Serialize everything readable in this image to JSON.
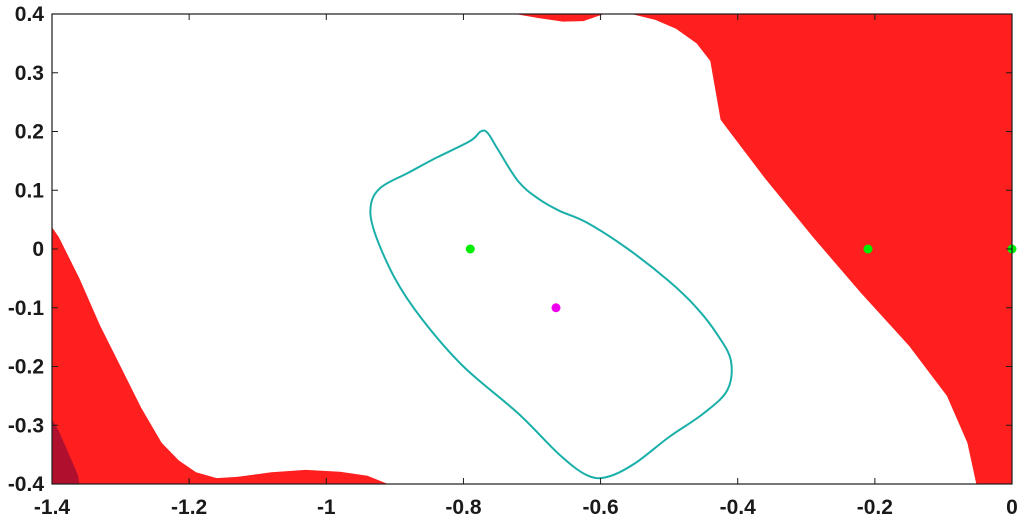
{
  "chart_data": {
    "type": "area",
    "title": "",
    "xlabel": "",
    "ylabel": "",
    "xlim": [
      -1.4,
      0
    ],
    "ylim": [
      -0.4,
      0.4
    ],
    "grid": false,
    "x_ticks": [
      -1.4,
      -1.2,
      -1.0,
      -0.8,
      -0.6,
      -0.4,
      -0.2,
      0
    ],
    "x_tick_labels": [
      "-1.4",
      "-1.2",
      "-1",
      "-0.8",
      "-0.6",
      "-0.4",
      "-0.2",
      "0"
    ],
    "y_ticks": [
      0.4,
      0.3,
      0.2,
      0.1,
      0,
      -0.1,
      -0.2,
      -0.3,
      -0.4
    ],
    "y_tick_labels": [
      "0.4",
      "0.3",
      "0.2",
      "0.1",
      "0",
      "-0.1",
      "-0.2",
      "-0.3",
      "-0.4"
    ],
    "colors": {
      "region": "#ff1f1f",
      "region_dark": "#b0102e",
      "contour": "#1aafa8",
      "green_point": "#00ee00",
      "magenta_point": "#ee00ee",
      "axis": "#1a1a1a"
    },
    "regions": [
      {
        "fill": "region",
        "points": [
          [
            -0.725,
            0.4
          ],
          [
            -0.69,
            0.393
          ],
          [
            -0.655,
            0.387
          ],
          [
            -0.625,
            0.388
          ],
          [
            -0.595,
            0.4
          ],
          [
            -0.555,
            0.4
          ],
          [
            -0.52,
            0.39
          ],
          [
            -0.49,
            0.375
          ],
          [
            -0.46,
            0.35
          ],
          [
            -0.44,
            0.32
          ],
          [
            -0.425,
            0.22
          ],
          [
            -0.36,
            0.12
          ],
          [
            -0.29,
            0.02
          ],
          [
            -0.22,
            -0.075
          ],
          [
            -0.15,
            -0.165
          ],
          [
            -0.095,
            -0.25
          ],
          [
            -0.065,
            -0.33
          ],
          [
            -0.052,
            -0.4
          ],
          [
            0,
            -0.4
          ],
          [
            0,
            0.4
          ]
        ]
      },
      {
        "fill": "region",
        "points": [
          [
            -1.4,
            0.037
          ],
          [
            -1.39,
            0.02
          ],
          [
            -1.36,
            -0.05
          ],
          [
            -1.33,
            -0.13
          ],
          [
            -1.3,
            -0.2
          ],
          [
            -1.27,
            -0.27
          ],
          [
            -1.24,
            -0.33
          ],
          [
            -1.215,
            -0.36
          ],
          [
            -1.19,
            -0.38
          ],
          [
            -1.16,
            -0.39
          ],
          [
            -1.13,
            -0.388
          ],
          [
            -1.08,
            -0.38
          ],
          [
            -1.03,
            -0.376
          ],
          [
            -0.98,
            -0.379
          ],
          [
            -0.94,
            -0.386
          ],
          [
            -0.91,
            -0.4
          ],
          [
            -1.4,
            -0.4
          ]
        ]
      },
      {
        "fill": "region_dark",
        "points": [
          [
            -1.4,
            -0.29
          ],
          [
            -1.39,
            -0.31
          ],
          [
            -1.375,
            -0.35
          ],
          [
            -1.362,
            -0.385
          ],
          [
            -1.36,
            -0.4
          ],
          [
            -1.4,
            -0.4
          ]
        ]
      }
    ],
    "contour": {
      "stroke": "contour",
      "points": [
        [
          -0.79,
          0.184
        ],
        [
          -0.775,
          0.2
        ],
        [
          -0.765,
          0.198
        ],
        [
          -0.75,
          0.17
        ],
        [
          -0.72,
          0.115
        ],
        [
          -0.69,
          0.085
        ],
        [
          -0.66,
          0.065
        ],
        [
          -0.62,
          0.045
        ],
        [
          -0.56,
          0.0
        ],
        [
          -0.5,
          -0.055
        ],
        [
          -0.46,
          -0.1
        ],
        [
          -0.43,
          -0.145
        ],
        [
          -0.41,
          -0.19
        ],
        [
          -0.415,
          -0.24
        ],
        [
          -0.45,
          -0.28
        ],
        [
          -0.5,
          -0.32
        ],
        [
          -0.55,
          -0.365
        ],
        [
          -0.59,
          -0.388
        ],
        [
          -0.62,
          -0.385
        ],
        [
          -0.66,
          -0.35
        ],
        [
          -0.72,
          -0.28
        ],
        [
          -0.8,
          -0.2
        ],
        [
          -0.86,
          -0.12
        ],
        [
          -0.9,
          -0.05
        ],
        [
          -0.93,
          0.03
        ],
        [
          -0.935,
          0.075
        ],
        [
          -0.92,
          0.105
        ],
        [
          -0.88,
          0.13
        ],
        [
          -0.84,
          0.155
        ]
      ]
    },
    "series": [
      {
        "kind": "scatter",
        "color": "green_point",
        "x": [
          -0.79,
          -0.21,
          0
        ],
        "y": [
          0,
          0,
          0
        ]
      },
      {
        "kind": "scatter",
        "color": "magenta_point",
        "x": [
          -0.665
        ],
        "y": [
          -0.1
        ]
      }
    ]
  }
}
